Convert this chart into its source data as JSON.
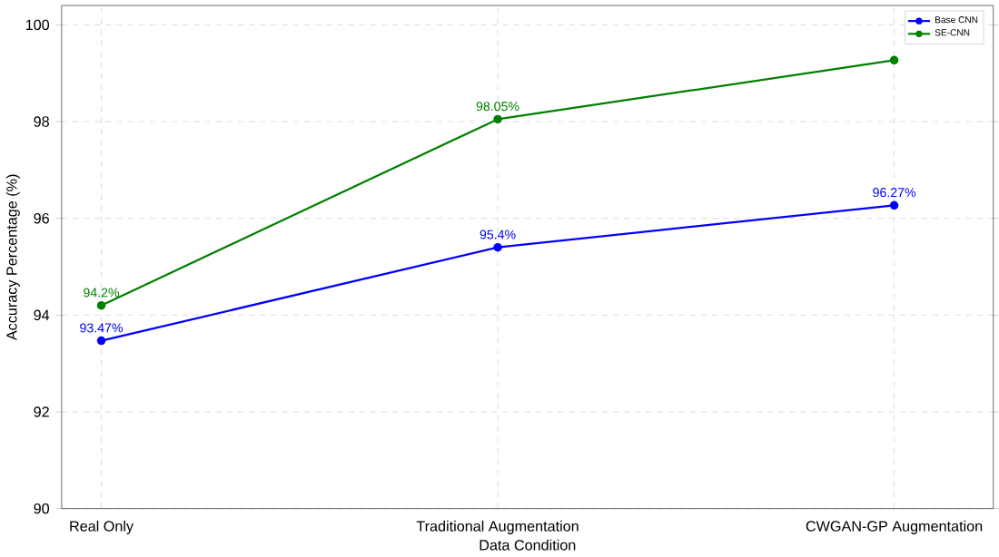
{
  "chart_data": {
    "type": "line",
    "xlabel": "Data Condition",
    "ylabel": "Accuracy Percentage (%)",
    "categories": [
      "Real Only",
      "Traditional Augmentation",
      "CWGAN-GP Augmentation"
    ],
    "series": [
      {
        "name": "Base CNN",
        "color": "#0000ff",
        "values": [
          93.47,
          95.4,
          96.27
        ],
        "value_labels": [
          "93.47%",
          "95.4%",
          "96.27%"
        ]
      },
      {
        "name": "SE-CNN",
        "color": "#008000",
        "values": [
          94.2,
          98.05,
          99.27
        ],
        "value_labels": [
          "94.2%",
          "98.05%",
          null
        ]
      }
    ],
    "ylim": [
      90,
      100.4
    ],
    "yticks": [
      90,
      92,
      94,
      96,
      98,
      100
    ],
    "grid": true,
    "legend": "top right",
    "marker": "circle",
    "line_style": "solid"
  }
}
